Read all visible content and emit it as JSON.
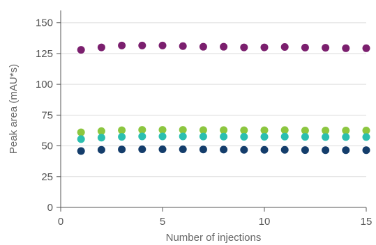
{
  "chart_data": {
    "type": "scatter",
    "xlabel": "Number of injections",
    "ylabel": "Peak area (mAU*s)",
    "xlim": [
      0,
      15
    ],
    "ylim": [
      0,
      160
    ],
    "xticks": [
      "0",
      "5",
      "10",
      "15"
    ],
    "yticks": [
      "0",
      "25",
      "50",
      "75",
      "100",
      "125",
      "150"
    ],
    "grid": "horizontal",
    "legend": "none",
    "x": [
      1,
      2,
      3,
      4,
      5,
      6,
      7,
      8,
      9,
      10,
      11,
      12,
      13,
      14,
      15
    ],
    "series": [
      {
        "color": "#7b1f6e",
        "values": [
          128,
          130,
          131.5,
          131.5,
          131.5,
          131,
          130.5,
          130.5,
          130,
          130,
          130.3,
          129.8,
          129.7,
          129.3,
          129.3
        ]
      },
      {
        "color": "#8cc63f",
        "values": [
          61,
          62,
          62.7,
          63,
          63,
          63,
          62.8,
          62.8,
          62.7,
          62.7,
          62.8,
          62.5,
          62.5,
          62.5,
          62.5
        ]
      },
      {
        "color": "#2bbfb0",
        "values": [
          55.5,
          56.7,
          57.3,
          57.7,
          57.7,
          57.7,
          57.6,
          57.5,
          57.4,
          57.4,
          57.5,
          57.3,
          57.2,
          57.2,
          57.2
        ]
      },
      {
        "color": "#143d6b",
        "values": [
          45.8,
          46.8,
          47.1,
          47.2,
          47.2,
          47.2,
          47.1,
          47,
          46.8,
          46.8,
          46.8,
          46.6,
          46.5,
          46.5,
          46.5
        ]
      }
    ]
  }
}
